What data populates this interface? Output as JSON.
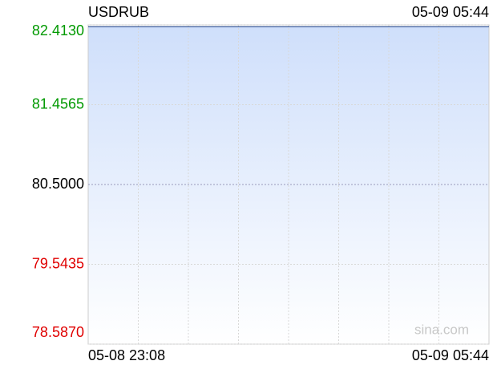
{
  "chart_data": {
    "type": "area",
    "title": "USDRUB",
    "timestamp": "05-09 05:44",
    "watermark": "sina.com",
    "x": [
      "05-08 23:08",
      "05-09 05:44"
    ],
    "series": [
      {
        "name": "USDRUB",
        "color": "#3b5b9a",
        "values": [
          82.39,
          82.39
        ]
      }
    ],
    "ylim": [
      78.587,
      82.413
    ],
    "yticks": [
      {
        "value": 82.413,
        "label": "82.4130"
      },
      {
        "value": 81.4565,
        "label": "81.4565"
      },
      {
        "value": 80.5,
        "label": "80.5000"
      },
      {
        "value": 79.5435,
        "label": "79.5435"
      },
      {
        "value": 78.587,
        "label": "78.5870"
      }
    ],
    "up_color": "#009900",
    "down_color": "#e00000",
    "neutral_color": "#000000",
    "grid": true
  }
}
